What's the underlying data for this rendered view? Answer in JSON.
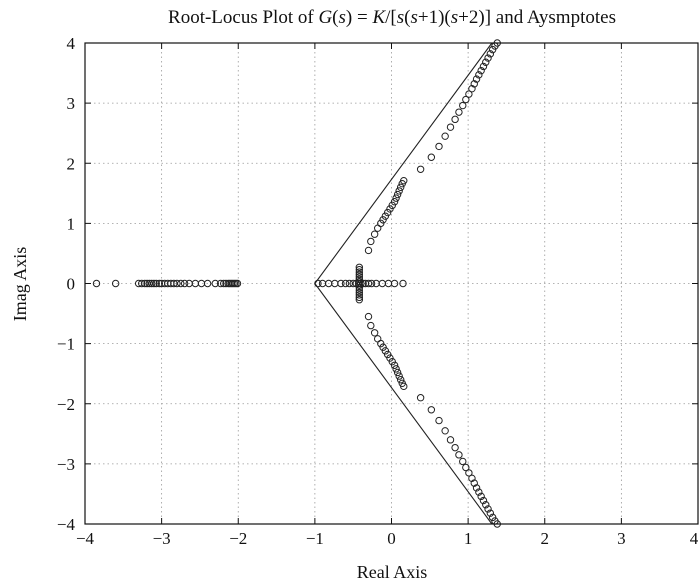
{
  "chart_data": {
    "type": "scatter",
    "title": "Root-Locus Plot of G(s) = K/[s(s+1)(s+2)] and Aysmptotes",
    "title_parts": {
      "prefix": "Root-Locus Plot of ",
      "G": "G",
      "lp1": "(",
      "s1": "s",
      "rp1": ")",
      "eq": " = ",
      "K": "K",
      "sl": "/[",
      "s2": "s",
      "lp2": "(",
      "s3": "s",
      "p1": "+1)(",
      "s4": "s",
      "suffix": "+2)] and Aysmptotes"
    },
    "xlabel": "Real Axis",
    "ylabel": "Imag Axis",
    "xlim": [
      -4,
      4
    ],
    "ylim": [
      -4,
      4
    ],
    "xticks": [
      -4,
      -3,
      -2,
      -1,
      0,
      1,
      2,
      3,
      4
    ],
    "yticks": [
      -4,
      -3,
      -2,
      -1,
      0,
      1,
      2,
      3,
      4
    ],
    "xtick_labels": [
      "−4",
      "−3",
      "−2",
      "−1",
      "0",
      "1",
      "2",
      "3",
      "4"
    ],
    "ytick_labels": [
      "−4",
      "−3",
      "−2",
      "−1",
      "0",
      "1",
      "2",
      "3",
      "4"
    ],
    "grid": true,
    "marker": "circle-open",
    "asymptotes": {
      "centroid": [
        -1,
        0
      ],
      "lines": [
        {
          "x": [
            1.31,
            -1,
            1.31
          ],
          "y": [
            4,
            0,
            -4
          ]
        }
      ]
    },
    "series": [
      {
        "values": [
          [
            -3.85,
            0
          ],
          [
            -3.6,
            0
          ],
          [
            -3.3,
            0
          ],
          [
            -3.26,
            0
          ],
          [
            -3.22,
            0
          ],
          [
            -3.19,
            0
          ],
          [
            -3.16,
            0
          ],
          [
            -3.13,
            0
          ],
          [
            -3.1,
            0
          ],
          [
            -3.07,
            0
          ],
          [
            -3.03,
            0
          ],
          [
            -3.0,
            0
          ],
          [
            -2.96,
            0
          ],
          [
            -2.92,
            0
          ],
          [
            -2.88,
            0
          ],
          [
            -2.84,
            0
          ],
          [
            -2.8,
            0
          ],
          [
            -2.75,
            0
          ],
          [
            -2.7,
            0
          ],
          [
            -2.64,
            0
          ],
          [
            -2.56,
            0
          ],
          [
            -2.48,
            0
          ],
          [
            -2.4,
            0
          ],
          [
            -2.3,
            0
          ],
          [
            -2.23,
            0
          ],
          [
            -2.19,
            0
          ],
          [
            -2.16,
            0
          ],
          [
            -2.13,
            0
          ],
          [
            -2.11,
            0
          ],
          [
            -2.09,
            0
          ],
          [
            -2.07,
            0
          ],
          [
            -2.05,
            0
          ],
          [
            -2.03,
            0
          ],
          [
            -2.01,
            0
          ],
          [
            -0.96,
            0
          ],
          [
            -0.9,
            0
          ],
          [
            -0.82,
            0
          ],
          [
            -0.74,
            0
          ],
          [
            -0.66,
            0
          ],
          [
            -0.6,
            0
          ],
          [
            -0.55,
            0
          ],
          [
            -0.5,
            0
          ],
          [
            -0.46,
            0
          ],
          [
            -0.43,
            0
          ],
          [
            -0.4,
            0
          ],
          [
            -0.37,
            0
          ],
          [
            -0.34,
            0
          ],
          [
            -0.3,
            0
          ],
          [
            -0.26,
            0
          ],
          [
            -0.2,
            0
          ],
          [
            -0.12,
            0
          ],
          [
            -0.04,
            0
          ],
          [
            0.04,
            0
          ],
          [
            0.15,
            0
          ],
          [
            -0.42,
            0.03
          ],
          [
            -0.42,
            0.07
          ],
          [
            -0.42,
            0.11
          ],
          [
            -0.42,
            0.15
          ],
          [
            -0.42,
            0.19
          ],
          [
            -0.42,
            0.23
          ],
          [
            -0.42,
            -0.03
          ],
          [
            -0.42,
            -0.07
          ],
          [
            -0.42,
            -0.11
          ],
          [
            -0.42,
            -0.15
          ],
          [
            -0.42,
            -0.19
          ],
          [
            -0.42,
            -0.23
          ],
          [
            -0.42,
            0.27
          ],
          [
            -0.42,
            -0.27
          ],
          [
            -0.3,
            0.55
          ],
          [
            -0.27,
            0.7
          ],
          [
            -0.22,
            0.82
          ],
          [
            -0.18,
            0.92
          ],
          [
            -0.14,
            1.0
          ],
          [
            -0.11,
            1.06
          ],
          [
            -0.08,
            1.12
          ],
          [
            -0.05,
            1.18
          ],
          [
            -0.02,
            1.24
          ],
          [
            0.01,
            1.3
          ],
          [
            0.04,
            1.36
          ],
          [
            0.06,
            1.42
          ],
          [
            0.08,
            1.48
          ],
          [
            0.1,
            1.54
          ],
          [
            0.12,
            1.6
          ],
          [
            0.14,
            1.66
          ],
          [
            0.16,
            1.71
          ],
          [
            0.38,
            1.9
          ],
          [
            0.52,
            2.1
          ],
          [
            0.62,
            2.28
          ],
          [
            0.7,
            2.45
          ],
          [
            0.77,
            2.6
          ],
          [
            0.83,
            2.73
          ],
          [
            0.88,
            2.85
          ],
          [
            0.93,
            2.96
          ],
          [
            0.97,
            3.06
          ],
          [
            1.01,
            3.15
          ],
          [
            1.05,
            3.24
          ],
          [
            1.08,
            3.32
          ],
          [
            1.11,
            3.4
          ],
          [
            1.14,
            3.47
          ],
          [
            1.17,
            3.54
          ],
          [
            1.2,
            3.61
          ],
          [
            1.23,
            3.68
          ],
          [
            1.26,
            3.75
          ],
          [
            1.29,
            3.82
          ],
          [
            1.32,
            3.89
          ],
          [
            1.35,
            3.95
          ],
          [
            1.38,
            4.0
          ],
          [
            -0.3,
            -0.55
          ],
          [
            -0.27,
            -0.7
          ],
          [
            -0.22,
            -0.82
          ],
          [
            -0.18,
            -0.92
          ],
          [
            -0.14,
            -1.0
          ],
          [
            -0.11,
            -1.06
          ],
          [
            -0.08,
            -1.12
          ],
          [
            -0.05,
            -1.18
          ],
          [
            -0.02,
            -1.24
          ],
          [
            0.01,
            -1.3
          ],
          [
            0.04,
            -1.36
          ],
          [
            0.06,
            -1.42
          ],
          [
            0.08,
            -1.48
          ],
          [
            0.1,
            -1.54
          ],
          [
            0.12,
            -1.6
          ],
          [
            0.14,
            -1.66
          ],
          [
            0.16,
            -1.71
          ],
          [
            0.38,
            -1.9
          ],
          [
            0.52,
            -2.1
          ],
          [
            0.62,
            -2.28
          ],
          [
            0.7,
            -2.45
          ],
          [
            0.77,
            -2.6
          ],
          [
            0.83,
            -2.73
          ],
          [
            0.88,
            -2.85
          ],
          [
            0.93,
            -2.96
          ],
          [
            0.97,
            -3.06
          ],
          [
            1.01,
            -3.15
          ],
          [
            1.05,
            -3.24
          ],
          [
            1.08,
            -3.32
          ],
          [
            1.11,
            -3.4
          ],
          [
            1.14,
            -3.47
          ],
          [
            1.17,
            -3.54
          ],
          [
            1.2,
            -3.61
          ],
          [
            1.23,
            -3.68
          ],
          [
            1.26,
            -3.75
          ],
          [
            1.29,
            -3.82
          ],
          [
            1.32,
            -3.89
          ],
          [
            1.35,
            -3.95
          ],
          [
            1.38,
            -4.0
          ]
        ]
      }
    ]
  }
}
